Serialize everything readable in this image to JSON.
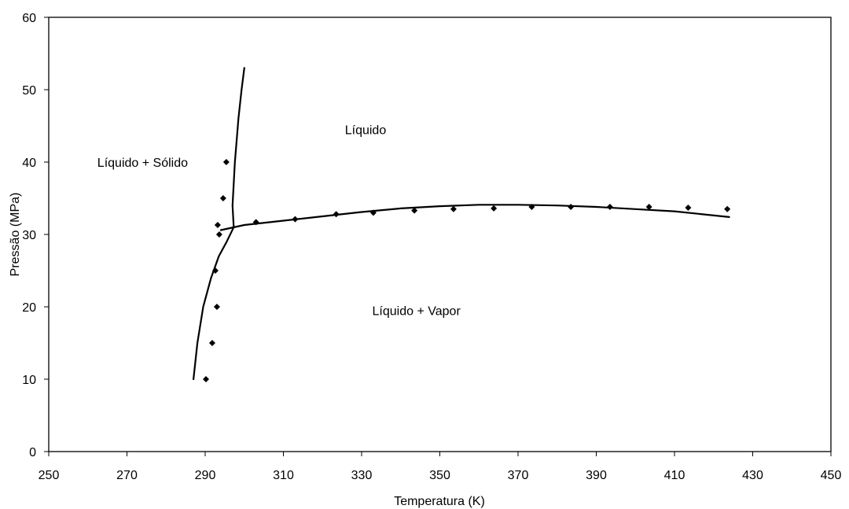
{
  "chart_data": {
    "type": "scatter",
    "title": "",
    "xlabel": "Temperatura (K)",
    "ylabel": "Pressão (MPa)",
    "xlim": [
      250,
      450
    ],
    "ylim": [
      0,
      60
    ],
    "xticks": [
      250,
      270,
      290,
      310,
      330,
      350,
      370,
      390,
      410,
      430,
      450
    ],
    "yticks": [
      0,
      10,
      20,
      30,
      40,
      50,
      60
    ],
    "grid": false,
    "legend": "none",
    "series": [
      {
        "kind": "points",
        "marker": "diamond",
        "color": "#000000",
        "x": [
          290.2,
          291.8,
          293.0,
          292.6,
          293.6,
          294.6,
          295.4,
          293.2,
          303.0,
          313.0,
          323.5,
          333.0,
          343.5,
          353.5,
          363.8,
          373.5,
          383.5,
          393.5,
          403.5,
          413.5,
          423.5
        ],
        "y": [
          10.0,
          15.0,
          20.0,
          25.0,
          30.0,
          35.0,
          40.0,
          31.3,
          31.7,
          32.1,
          32.8,
          33.0,
          33.3,
          33.5,
          33.6,
          33.8,
          33.8,
          33.8,
          33.8,
          33.7,
          33.5
        ]
      },
      {
        "kind": "line",
        "color": "#000000",
        "x": [
          287.0,
          288.0,
          289.5,
          291.5,
          293.5,
          295.5,
          297.3
        ],
        "y": [
          10.0,
          15.0,
          20.0,
          24.0,
          27.0,
          29.0,
          31.0
        ]
      },
      {
        "kind": "line",
        "color": "#000000",
        "x": [
          297.3,
          297.0,
          297.6,
          298.5,
          299.3,
          300.0
        ],
        "y": [
          31.0,
          34.0,
          40.0,
          46.0,
          50.0,
          53.0
        ]
      },
      {
        "kind": "line",
        "color": "#000000",
        "x": [
          294.0,
          300.0,
          310.0,
          320.0,
          330.0,
          340.0,
          350.0,
          360.0,
          370.0,
          380.0,
          390.0,
          400.0,
          410.0,
          424.0
        ],
        "y": [
          30.6,
          31.3,
          31.9,
          32.5,
          33.1,
          33.6,
          33.9,
          34.1,
          34.1,
          34.0,
          33.8,
          33.5,
          33.2,
          32.4
        ]
      }
    ],
    "annotations": [
      {
        "text": "Líquido",
        "x": 331,
        "y": 44.5
      },
      {
        "text": "Líquido + Sólido",
        "x": 274,
        "y": 40
      },
      {
        "text": "Líquido + Vapor",
        "x": 344,
        "y": 19.5
      }
    ]
  }
}
